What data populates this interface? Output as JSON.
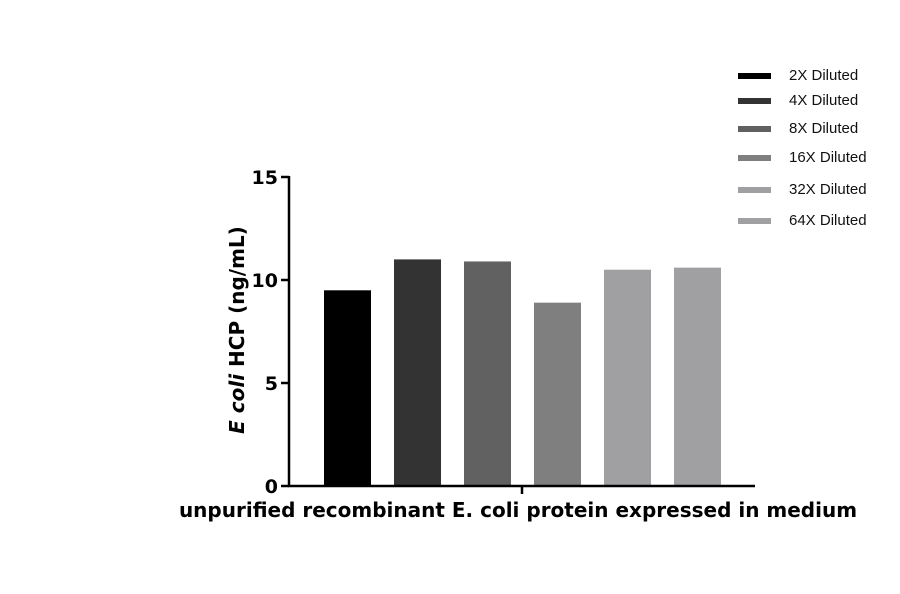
{
  "chart_data": {
    "type": "bar",
    "title": "",
    "xlabel": "unpurified recombinant E. coli protein expressed in medium",
    "ylabel": "E coli HCP (ng/mL)",
    "ylabel_italic_part": "E coli",
    "ylabel_plain_part": " HCP (ng/mL)",
    "ylim": [
      0,
      15
    ],
    "yticks": [
      0,
      5,
      10,
      15
    ],
    "grid": false,
    "legend_position": "upper right",
    "categories": [
      "unpurified recombinant E. coli protein expressed in medium"
    ],
    "series": [
      {
        "name": "2X Diluted",
        "values": [
          9.5
        ],
        "color": "#000000"
      },
      {
        "name": "4X Diluted",
        "values": [
          11.0
        ],
        "color": "#333333"
      },
      {
        "name": "8X Diluted",
        "values": [
          10.9
        ],
        "color": "#616161"
      },
      {
        "name": "16X Diluted",
        "values": [
          8.9
        ],
        "color": "#7f7f7f"
      },
      {
        "name": "32X Diluted",
        "values": [
          10.5
        ],
        "color": "#a0a0a3"
      },
      {
        "name": "64X Diluted",
        "values": [
          10.6
        ],
        "color": "#a0a0a3"
      }
    ]
  },
  "legend": {
    "items": [
      {
        "label": "2X Diluted",
        "color": "#000000"
      },
      {
        "label": "4X Diluted",
        "color": "#333333"
      },
      {
        "label": "8X Diluted",
        "color": "#616161"
      },
      {
        "label": "16X Diluted",
        "color": "#7f7f7f"
      },
      {
        "label": "32X Diluted",
        "color": "#a0a0a3"
      },
      {
        "label": "64X Diluted",
        "color": "#a0a0a3"
      }
    ]
  }
}
